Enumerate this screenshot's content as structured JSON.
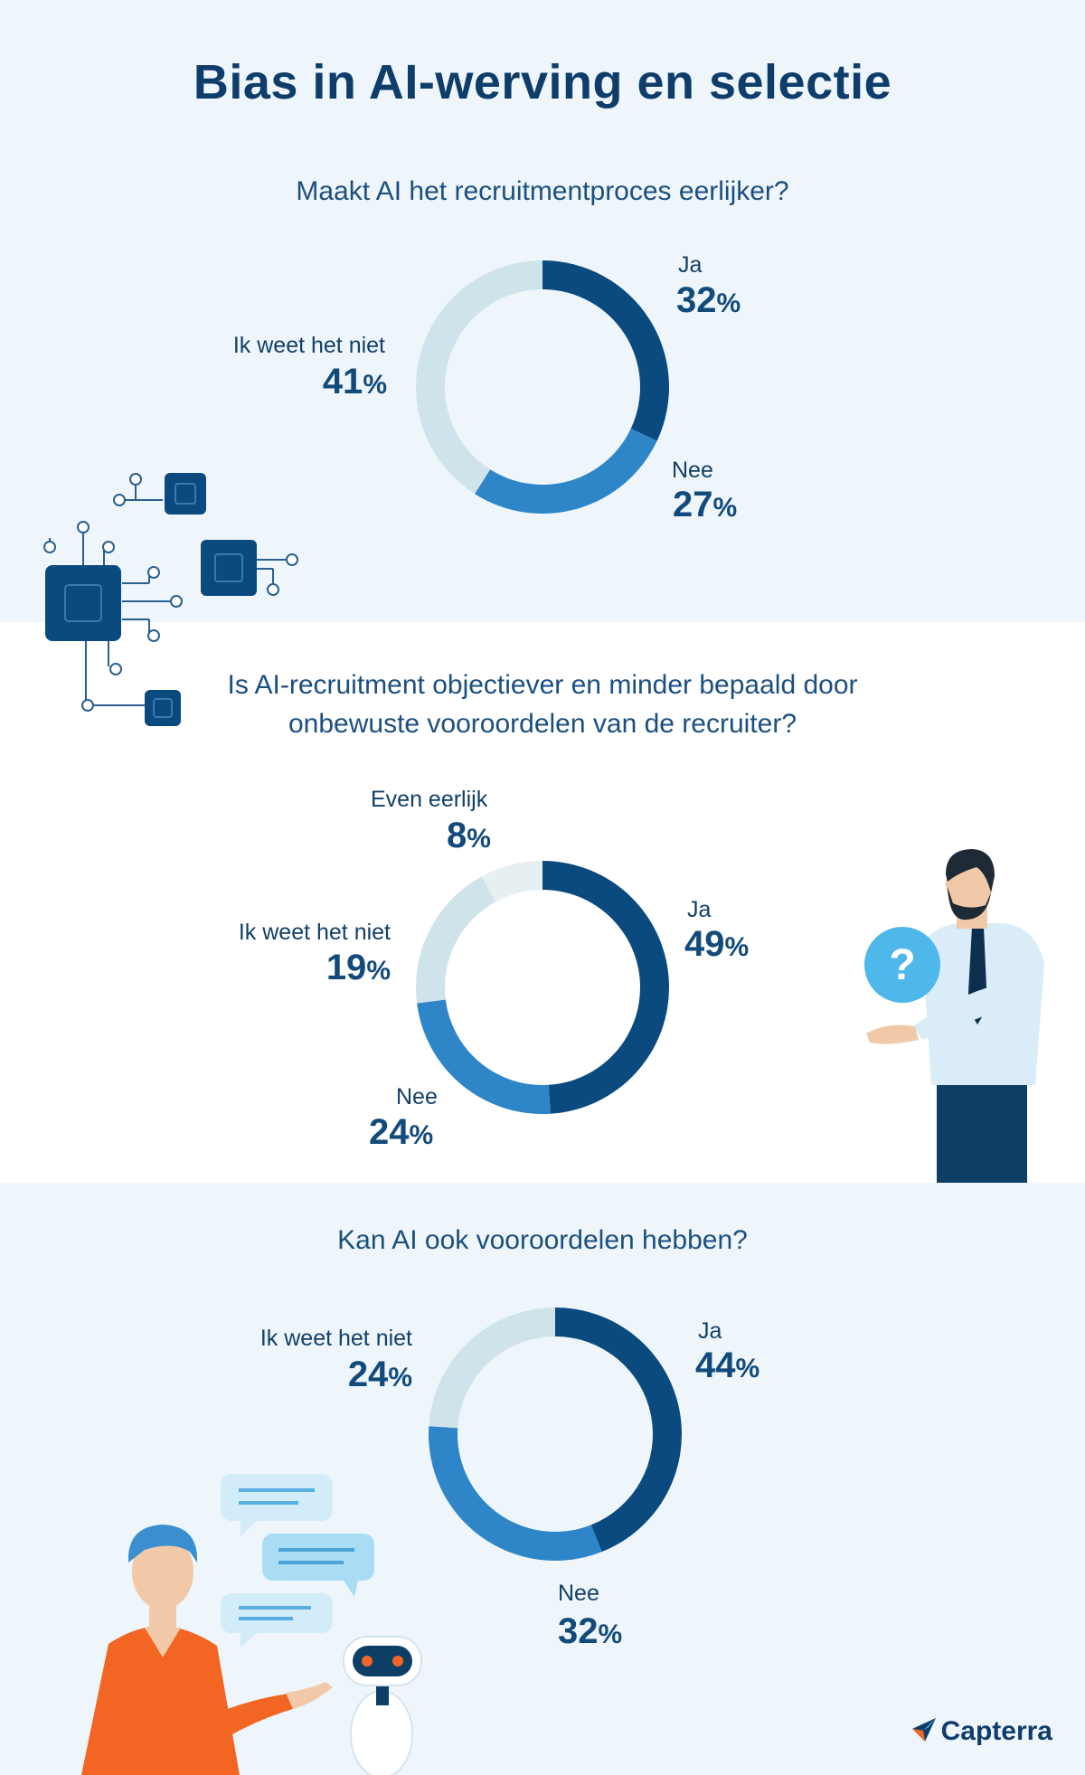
{
  "title": "Bias in AI-werving en selectie",
  "brand": "Capterra",
  "colors": {
    "dark": "#0a4a7f",
    "mid": "#2e86c9",
    "light": "#cfe3ea",
    "faint": "#e6eff2",
    "accent": "#f26522"
  },
  "icons": [
    "circuit-chip-icon",
    "question-mark-icon",
    "chat-bubble-icon",
    "robot-icon",
    "capterra-logo-icon"
  ],
  "chart_data": [
    {
      "type": "pie",
      "title": "Maakt AI het recruitmentproces eerlijker?",
      "slices": [
        {
          "label": "Ja",
          "value": 32,
          "display": "32",
          "color": "#0a4a7f"
        },
        {
          "label": "Nee",
          "value": 27,
          "display": "27",
          "color": "#2e86c9"
        },
        {
          "label": "Ik weet het niet",
          "value": 41,
          "display": "41",
          "color": "#cfe3ea"
        }
      ]
    },
    {
      "type": "pie",
      "title": "Is AI-recruitment objectiever en minder bepaald door onbewuste vooroordelen van de recruiter?",
      "slices": [
        {
          "label": "Ja",
          "value": 49,
          "display": "49",
          "color": "#0a4a7f"
        },
        {
          "label": "Nee",
          "value": 24,
          "display": "24",
          "color": "#2e86c9"
        },
        {
          "label": "Ik weet het niet",
          "value": 19,
          "display": "19",
          "color": "#cfe3ea"
        },
        {
          "label": "Even eerlijk",
          "value": 8,
          "display": "8",
          "color": "#e6eff2"
        }
      ]
    },
    {
      "type": "pie",
      "title": "Kan AI ook vooroordelen hebben?",
      "slices": [
        {
          "label": "Ja",
          "value": 44,
          "display": "44",
          "color": "#0a4a7f"
        },
        {
          "label": "Nee",
          "value": 32,
          "display": "32",
          "color": "#2e86c9"
        },
        {
          "label": "Ik weet het niet",
          "value": 24,
          "display": "24",
          "color": "#cfe3ea"
        }
      ]
    }
  ]
}
